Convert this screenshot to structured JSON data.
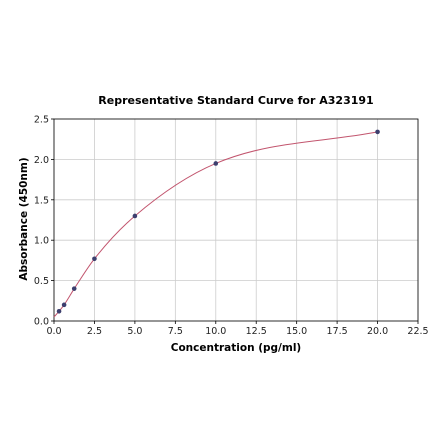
{
  "chart_data": {
    "type": "scatter",
    "title": "Representative Standard Curve for A323191",
    "xlabel": "Concentration (pg/ml)",
    "ylabel": "Absorbance (450nm)",
    "xlim": [
      0,
      22.5
    ],
    "ylim": [
      0,
      2.5
    ],
    "xticks": [
      0,
      2.5,
      5,
      7.5,
      10,
      12.5,
      15,
      17.5,
      20,
      22.5
    ],
    "yticks": [
      0,
      0.5,
      1,
      1.5,
      2,
      2.5
    ],
    "xtick_labels": [
      "0.0",
      "2.5",
      "5.0",
      "7.5",
      "10.0",
      "12.5",
      "15.0",
      "17.5",
      "20.0",
      "22.5"
    ],
    "ytick_labels": [
      "0.0",
      "0.5",
      "1.0",
      "1.5",
      "2.0",
      "2.5"
    ],
    "grid": true,
    "series": [
      {
        "x": [
          0.3125,
          0.625,
          1.25,
          2.5,
          5,
          10,
          20
        ],
        "y": [
          0.12,
          0.2,
          0.4,
          0.77,
          1.3,
          1.95,
          2.34
        ]
      }
    ],
    "fit_curve": {
      "color": "#c2556e",
      "points": [
        [
          0,
          0.05
        ],
        [
          0.3125,
          0.12
        ],
        [
          0.625,
          0.2
        ],
        [
          1.25,
          0.4
        ],
        [
          2.5,
          0.77
        ],
        [
          5,
          1.3
        ],
        [
          10,
          1.95
        ],
        [
          20,
          2.34
        ]
      ]
    },
    "colors": {
      "marker": "#3d3f6e",
      "grid": "#cccccc",
      "axis": "#000000"
    }
  }
}
